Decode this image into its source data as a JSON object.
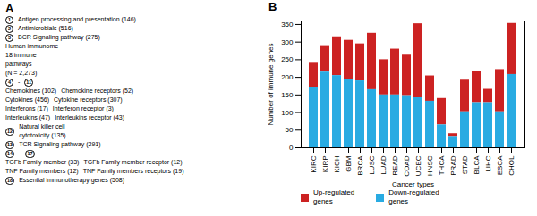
{
  "chart_data": {
    "type": "bar",
    "stacked": true,
    "title": "B",
    "xlabel": "Cancer types",
    "ylabel": "Number of immune genes",
    "categories": [
      "KIRC",
      "KIRP",
      "KICH",
      "GBM",
      "BRCA",
      "LUSC",
      "LUAD",
      "READ",
      "COAD",
      "UCEC",
      "HNSC",
      "THCA",
      "PRAD",
      "STAD",
      "BLCA",
      "LIHC",
      "ESCA",
      "CHOL"
    ],
    "series": [
      {
        "name": "Up-regulated\ngenes",
        "color": "#cc2222",
        "values": [
          70,
          75,
          110,
          110,
          105,
          160,
          100,
          130,
          115,
          210,
          72,
          75,
          8,
          90,
          90,
          38,
          120,
          145
        ]
      },
      {
        "name": "Down-regulated\ngenes",
        "color": "#29abe2",
        "values": [
          170,
          215,
          205,
          195,
          190,
          165,
          150,
          150,
          148,
          142,
          132,
          65,
          32,
          102,
          128,
          128,
          102,
          208
        ]
      }
    ],
    "ylim": [
      0,
      360
    ],
    "yticks": [
      0,
      50,
      100,
      150,
      200,
      250,
      300,
      350
    ],
    "legend": "bottom",
    "annotations": [
      [
        "A"
      ],
      [
        "1",
        "Antigen processing and presentation (146)"
      ],
      [
        "2",
        "Antimicrobials (516)"
      ],
      [
        "3",
        "BCR Signaling pathway (275)"
      ],
      [
        "Human immunome"
      ],
      [
        "18 immune\npathways"
      ],
      [
        "(N = 2,273)"
      ],
      [
        "4",
        "-",
        "11"
      ],
      [
        "Chemokines (102)",
        "Chemokine receptors (52)"
      ],
      [
        "Cytokines (456)",
        "Cytokine receptors (307)"
      ],
      [
        "Interferons (17)",
        "Interferon receptor (3)"
      ],
      [
        "Interleukins (47)",
        "Interleukins receptor (43)"
      ],
      [
        "12",
        "Natural killer cell\ncytotoxicity (135)"
      ],
      [
        "13",
        "TCR Signaling pathway (291)"
      ],
      [
        "14",
        "-",
        "17"
      ],
      [
        "TGFb Family member (33)",
        "TGFb Family member receptor (12)"
      ],
      [
        "TNF Family members (12)",
        "TNF Family members receptors (19)"
      ],
      [
        "18",
        "Essential immunotherapy genes (508)"
      ]
    ]
  }
}
